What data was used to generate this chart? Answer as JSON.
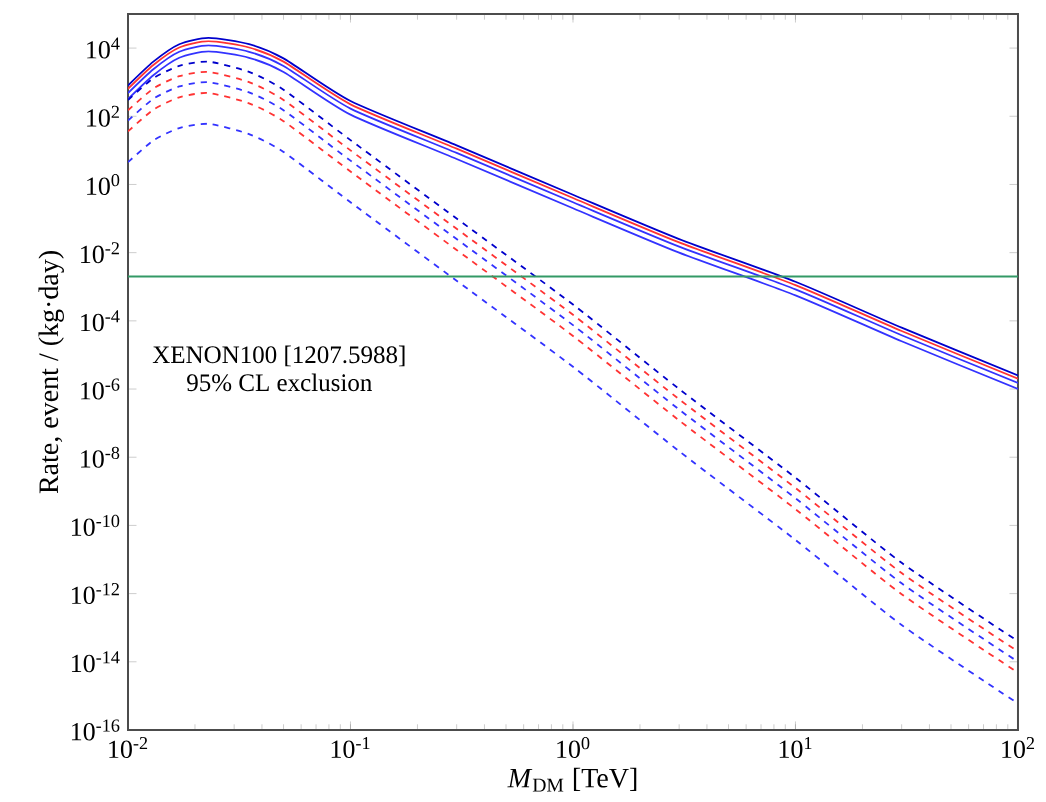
{
  "chart_data": {
    "type": "line",
    "xlabel": "*M*$_{DM}$ [TeV]",
    "ylabel": "Rate, event / (kg·day)",
    "x": [
      0.01,
      0.013,
      0.017,
      0.023,
      0.035,
      0.05,
      0.1,
      0.3,
      1,
      3,
      10,
      30,
      100
    ],
    "series": [
      {
        "color": "#3333ff",
        "line_style": "solid",
        "values": [
          320,
          1600,
          5200,
          8000,
          5200,
          2000,
          112,
          5.6,
          0.2,
          0.01,
          0.00056,
          2.52e-05,
          1e-06
        ]
      },
      {
        "color": "#3333ff",
        "line_style": "solid",
        "values": [
          480,
          2400,
          7800,
          12000,
          7800,
          3000,
          168,
          8.4,
          0.3,
          0.015,
          0.00084,
          3.78e-05,
          1.5e-06
        ]
      },
      {
        "color": "#ff3333",
        "line_style": "solid",
        "values": [
          640,
          3200,
          10400,
          16000,
          10400,
          4000,
          224,
          11.2,
          0.4,
          0.02,
          0.00112,
          5.04e-05,
          2e-06
        ]
      },
      {
        "color": "#0000cc",
        "line_style": "solid",
        "values": [
          800,
          4000,
          13000,
          20000,
          13000,
          5000,
          280,
          14,
          0.5,
          0.025,
          0.0014,
          6.3e-05,
          2.5e-06
        ]
      },
      {
        "color": "#3333ff",
        "line_style": "dashed",
        "values": [
          4.5,
          19.5,
          45,
          60,
          30,
          9,
          0.3,
          0.0015,
          4.5e-06,
          1.5e-08,
          3.75e-11,
          1.2e-13,
          6e-16
        ]
      },
      {
        "color": "#ff3333",
        "line_style": "dashed",
        "values": [
          36,
          156,
          360,
          480,
          240,
          72,
          2.4,
          0.012,
          3.6e-05,
          1.2e-07,
          3e-10,
          9.6e-13,
          4.8e-15
        ]
      },
      {
        "color": "#3333ff",
        "line_style": "dashed",
        "values": [
          75,
          325,
          750,
          1000,
          500,
          150,
          5,
          0.025,
          7.5e-05,
          2.5e-07,
          6.25e-10,
          2e-12,
          1e-14
        ]
      },
      {
        "color": "#ff3333",
        "line_style": "dashed",
        "values": [
          150,
          650,
          1500,
          2000,
          1000,
          300,
          10,
          0.05,
          0.00015,
          5e-07,
          1.25e-09,
          4e-12,
          2e-14
        ]
      },
      {
        "color": "#0000cc",
        "line_style": "dashed",
        "values": [
          300,
          1300,
          3000,
          4000,
          2000,
          600,
          20,
          0.1,
          0.0003,
          1e-06,
          2.5e-09,
          8e-12,
          4e-14
        ]
      }
    ],
    "ref_lines": [
      {
        "axis": "y",
        "value": 0.002,
        "color": "#339966"
      }
    ],
    "annotations": [
      "XENON100 [1207.5988]",
      "95% CL exclusion"
    ],
    "log": "xy",
    "grid": false,
    "marker": "none",
    "xlim": [
      0.01,
      100
    ],
    "ylim": [
      1e-16,
      100000.0
    ],
    "xticks": [
      {
        "value": 0.01,
        "label": "10$^{-2}$"
      },
      {
        "value": 0.1,
        "label": "10$^{-1}$"
      },
      {
        "value": 1,
        "label": "10$^{0}$"
      },
      {
        "value": 10,
        "label": "10$^{1}$"
      },
      {
        "value": 100,
        "label": "10$^{2}$"
      }
    ],
    "yticks": [
      {
        "value": 1e-16,
        "label": "10$^{-16}$"
      },
      {
        "value": 1e-14,
        "label": "10$^{-14}$"
      },
      {
        "value": 1e-12,
        "label": "10$^{-12}$"
      },
      {
        "value": 1e-10,
        "label": "10$^{-10}$"
      },
      {
        "value": 1e-08,
        "label": "10$^{-8}$"
      },
      {
        "value": 1e-06,
        "label": "10$^{-6}$"
      },
      {
        "value": 0.0001,
        "label": "10$^{-4}$"
      },
      {
        "value": 0.01,
        "label": "10$^{-2}$"
      },
      {
        "value": 1,
        "label": "10$^{0}$"
      },
      {
        "value": 100,
        "label": "10$^{2}$"
      },
      {
        "value": 10000.0,
        "label": "10$^{4}$"
      }
    ]
  }
}
